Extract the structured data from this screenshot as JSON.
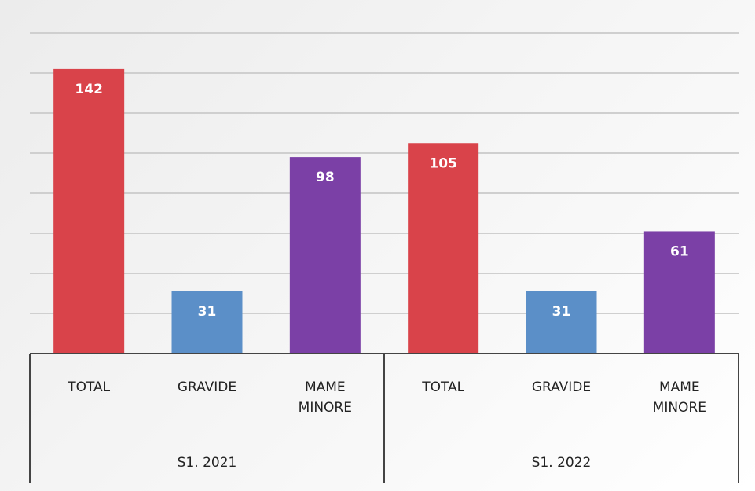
{
  "chart_data": {
    "type": "bar",
    "categories": [
      "TOTAL",
      "GRAVIDE",
      "MAME MINORE",
      "TOTAL",
      "GRAVIDE",
      "MAME MINORE"
    ],
    "groups": [
      "S1. 2021",
      "S1. 2022"
    ],
    "values": [
      142,
      31,
      98,
      105,
      31,
      61
    ],
    "colors": [
      "#d9434a",
      "#5b8fc8",
      "#7b40a6",
      "#d9434a",
      "#5b8fc8",
      "#7b40a6"
    ],
    "ylim": [
      0,
      160
    ],
    "yticks": [
      0,
      20,
      40,
      60,
      80,
      100,
      120,
      140,
      160
    ],
    "grid": true
  }
}
